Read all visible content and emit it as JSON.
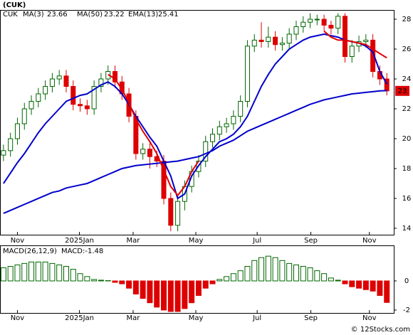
{
  "chart_data": [
    {
      "type": "candlestick",
      "title": "(CUK)",
      "ticker": "CUK",
      "watermark": "© 12Stocks.com",
      "last_price_label": "23",
      "xlim": [
        -0.5,
        56
      ],
      "xticks": [
        {
          "value": 2,
          "label": "Nov"
        },
        {
          "value": 10.9,
          "label": "2025Jan"
        },
        {
          "value": 18.6,
          "label": "Mar"
        },
        {
          "value": 27.6,
          "label": "May"
        },
        {
          "value": 36.4,
          "label": "Jul"
        },
        {
          "value": 44.1,
          "label": "Sep"
        },
        {
          "value": 52.5,
          "label": "Nov"
        }
      ],
      "ylim": [
        13.57,
        28.62
      ],
      "yticks": [
        14,
        16,
        18,
        20,
        22,
        24,
        26,
        28
      ],
      "grid": false,
      "up_color": "#006600",
      "down_color": "#dd0000",
      "open": [
        18.9,
        19.2,
        20.0,
        21.0,
        22.0,
        22.5,
        23.0,
        23.5,
        24.0,
        24.2,
        23.5,
        22.3,
        22.2,
        22.0,
        23.5,
        24.0,
        24.5,
        23.8,
        23.0,
        21.5,
        19.0,
        19.3,
        18.8,
        18.5,
        16.0,
        14.2,
        15.8,
        16.8,
        17.8,
        18.5,
        19.8,
        20.3,
        20.8,
        21.0,
        21.5,
        22.5,
        26.2,
        26.6,
        26.5,
        26.8,
        26.3,
        26.4,
        27.0,
        27.5,
        27.8,
        28.0,
        28.0,
        27.6,
        27.4,
        28.2,
        25.5,
        26.2,
        26.5,
        26.6,
        24.5,
        24.0
      ],
      "high": [
        19.6,
        20.4,
        21.4,
        22.4,
        22.9,
        23.4,
        23.9,
        24.4,
        24.6,
        24.6,
        23.9,
        22.7,
        22.6,
        23.9,
        24.4,
        24.9,
        24.9,
        24.2,
        23.4,
        21.9,
        19.7,
        19.7,
        19.2,
        18.9,
        16.4,
        16.2,
        17.2,
        18.2,
        18.9,
        20.2,
        20.7,
        21.2,
        21.4,
        21.9,
        22.9,
        26.6,
        27.0,
        27.8,
        27.5,
        27.2,
        26.8,
        27.4,
        27.9,
        28.2,
        28.4,
        28.3,
        28.3,
        27.9,
        28.4,
        28.4,
        26.6,
        26.9,
        27.0,
        27.0,
        24.9,
        24.4
      ],
      "low": [
        18.5,
        18.8,
        19.6,
        20.6,
        21.6,
        22.1,
        22.6,
        23.1,
        23.6,
        23.1,
        21.9,
        21.8,
        21.6,
        21.6,
        23.1,
        23.6,
        23.4,
        22.6,
        21.1,
        18.6,
        18.6,
        18.0,
        18.1,
        15.6,
        13.8,
        13.8,
        15.2,
        16.4,
        17.4,
        18.1,
        19.4,
        19.9,
        20.4,
        20.6,
        21.1,
        22.1,
        25.8,
        26.1,
        26.1,
        25.9,
        25.9,
        26.0,
        26.6,
        27.1,
        27.4,
        27.6,
        27.2,
        27.0,
        27.0,
        25.1,
        25.1,
        25.8,
        26.1,
        24.1,
        23.6,
        22.9
      ],
      "close": [
        19.2,
        20.0,
        21.0,
        22.0,
        22.5,
        23.0,
        23.5,
        24.0,
        24.2,
        23.5,
        22.3,
        22.2,
        22.0,
        23.5,
        24.0,
        24.5,
        23.8,
        23.0,
        21.5,
        19.0,
        19.3,
        18.8,
        18.5,
        16.0,
        14.2,
        15.8,
        16.8,
        17.8,
        18.5,
        19.8,
        20.3,
        20.8,
        21.0,
        21.5,
        22.5,
        26.2,
        26.6,
        26.5,
        26.8,
        26.3,
        26.4,
        27.0,
        27.5,
        27.8,
        28.0,
        28.0,
        27.6,
        27.4,
        28.2,
        25.5,
        26.2,
        26.5,
        26.6,
        24.5,
        24.0,
        23.2
      ],
      "series": [
        {
          "name": "MA(3)",
          "color": "#0000cc",
          "values": [
            17.0,
            17.7,
            18.4,
            19.0,
            19.7,
            20.4,
            21.0,
            21.5,
            22.0,
            22.5,
            22.7,
            22.9,
            23.0,
            23.3,
            23.6,
            23.8,
            23.5,
            23.0,
            22.3,
            21.5,
            20.8,
            20.1,
            19.5,
            18.5,
            17.5,
            16.0,
            16.3,
            17.5,
            18.2,
            18.8,
            19.3,
            19.8,
            20.0,
            20.3,
            20.8,
            21.5,
            22.5,
            23.5,
            24.3,
            25.0,
            25.5,
            26.0,
            26.3,
            26.6,
            26.8,
            26.9,
            27.0,
            26.9,
            26.8,
            26.6,
            26.5,
            26.4,
            26.2,
            25.8,
            24.5,
            23.66
          ]
        },
        {
          "name": "MA(50)",
          "color": "#0000cc",
          "values": [
            15.0,
            15.2,
            15.4,
            15.6,
            15.8,
            16.0,
            16.2,
            16.4,
            16.5,
            16.7,
            16.8,
            16.9,
            17.0,
            17.2,
            17.4,
            17.6,
            17.8,
            18.0,
            18.1,
            18.2,
            18.25,
            18.3,
            18.35,
            18.4,
            18.45,
            18.5,
            18.6,
            18.7,
            18.8,
            19.0,
            19.2,
            19.5,
            19.7,
            19.9,
            20.2,
            20.5,
            20.7,
            20.9,
            21.1,
            21.3,
            21.5,
            21.7,
            21.9,
            22.1,
            22.3,
            22.45,
            22.6,
            22.7,
            22.8,
            22.9,
            23.0,
            23.05,
            23.1,
            23.15,
            23.2,
            23.22
          ]
        },
        {
          "name": "EMA(13)",
          "color": "#e00000",
          "values": [
            null,
            null,
            null,
            null,
            null,
            null,
            null,
            null,
            null,
            null,
            null,
            null,
            null,
            null,
            null,
            24.3,
            24.0,
            23.3,
            22.4,
            21.3,
            20.5,
            19.8,
            19.0,
            17.9,
            16.8,
            16.2,
            16.8,
            17.8,
            18.5,
            null,
            null,
            null,
            null,
            null,
            null,
            null,
            null,
            null,
            null,
            null,
            null,
            null,
            null,
            null,
            null,
            null,
            27.2,
            26.8,
            26.6,
            26.6,
            26.5,
            26.4,
            26.3,
            26.0,
            25.7,
            25.41
          ]
        }
      ]
    },
    {
      "type": "bar",
      "title": "MACD(26,12,9)",
      "value_label": "MACD:-1.48",
      "xlim": [
        -0.5,
        56
      ],
      "xticks": [
        {
          "value": 2,
          "label": "Nov"
        },
        {
          "value": 10.9,
          "label": "2025Jan"
        },
        {
          "value": 18.6,
          "label": "Mar"
        },
        {
          "value": 27.6,
          "label": "May"
        },
        {
          "value": 36.4,
          "label": "Jul"
        },
        {
          "value": 44.1,
          "label": "Sep"
        },
        {
          "value": 52.5,
          "label": "Nov"
        }
      ],
      "ylim": [
        -2.2,
        2.44
      ],
      "yticks": [
        0,
        -2
      ],
      "up_color": "#006600",
      "down_color": "#dd0000",
      "values": [
        0.9,
        1.0,
        1.1,
        1.2,
        1.3,
        1.3,
        1.3,
        1.2,
        1.1,
        1.0,
        0.8,
        0.5,
        0.3,
        0.1,
        0.05,
        0.02,
        -0.1,
        -0.2,
        -0.5,
        -0.9,
        -1.2,
        -1.5,
        -1.8,
        -2.0,
        -2.1,
        -2.1,
        -1.9,
        -1.5,
        -1.0,
        -0.5,
        -0.2,
        0.1,
        0.3,
        0.5,
        0.7,
        1.0,
        1.4,
        1.6,
        1.7,
        1.6,
        1.4,
        1.2,
        1.1,
        1.0,
        0.9,
        0.7,
        0.5,
        0.2,
        0.05,
        -0.2,
        -0.4,
        -0.5,
        -0.6,
        -0.7,
        -1.0,
        -1.48
      ]
    }
  ]
}
